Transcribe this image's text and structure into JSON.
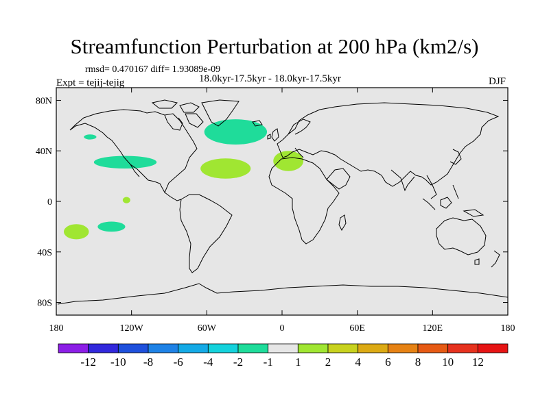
{
  "title": "Streamfunction Perturbation at 200 hPa (km2/s)",
  "stats": "rmsd= 0.470167  diff= 1.93089e-09",
  "period": "18.0kyr-17.5kyr - 18.0kyr-17.5kyr",
  "experiment": "Expt = tejij-tejig",
  "season": "DJF",
  "chart_data": {
    "type": "map",
    "projection": "cylindrical-equidistant",
    "lon_range": [
      -180,
      180
    ],
    "lat_range": [
      -90,
      90
    ],
    "x_ticks": [
      {
        "value": -180,
        "label": "180"
      },
      {
        "value": -120,
        "label": "120W"
      },
      {
        "value": -60,
        "label": "60W"
      },
      {
        "value": 0,
        "label": "0"
      },
      {
        "value": 60,
        "label": "60E"
      },
      {
        "value": 120,
        "label": "120E"
      },
      {
        "value": 180,
        "label": "180"
      }
    ],
    "y_ticks": [
      {
        "value": 80,
        "label": "80N"
      },
      {
        "value": 40,
        "label": "40N"
      },
      {
        "value": 0,
        "label": "0"
      },
      {
        "value": -40,
        "label": "40S"
      },
      {
        "value": -80,
        "label": "80S"
      }
    ],
    "background_color": "#e6e6e6",
    "anomalies": [
      {
        "lon": -125,
        "lat": 31,
        "rx_deg": 25,
        "ry_deg": 5,
        "level": "-2 to -1",
        "color": "#1fdc9a"
      },
      {
        "lon": -153,
        "lat": 51,
        "rx_deg": 5,
        "ry_deg": 2,
        "level": "-2 to -1",
        "color": "#1fdc9a"
      },
      {
        "lon": -37,
        "lat": 55,
        "rx_deg": 25,
        "ry_deg": 10,
        "level": "-2 to -1",
        "color": "#1fdc9a"
      },
      {
        "lon": -136,
        "lat": -20,
        "rx_deg": 11,
        "ry_deg": 4,
        "level": "-2 to -1",
        "color": "#1fdc9a"
      },
      {
        "lon": -45,
        "lat": 26,
        "rx_deg": 20,
        "ry_deg": 8,
        "level": "1 to 2",
        "color": "#a0e632"
      },
      {
        "lon": 5,
        "lat": 32,
        "rx_deg": 12,
        "ry_deg": 8,
        "level": "1 to 2",
        "color": "#a0e632"
      },
      {
        "lon": -164,
        "lat": -24,
        "rx_deg": 10,
        "ry_deg": 6,
        "level": "1 to 2",
        "color": "#a0e632"
      },
      {
        "lon": -124,
        "lat": 1,
        "rx_deg": 3,
        "ry_deg": 2.5,
        "level": "1 to 2",
        "color": "#a0e632"
      }
    ],
    "colorbar": {
      "boxes": [
        "#8c1ee6",
        "#3228dc",
        "#1e50dc",
        "#1e82e6",
        "#14aae6",
        "#14d2dc",
        "#1edc9a",
        "#e6e6e6",
        "#a0e632",
        "#c8d21e",
        "#dcaa14",
        "#e68214",
        "#e65a14",
        "#e6321e",
        "#e61414"
      ],
      "labels": [
        "-12",
        "-10",
        "-8",
        "-6",
        "-4",
        "-2",
        "-1",
        "1",
        "2",
        "4",
        "6",
        "8",
        "10",
        "12"
      ]
    }
  }
}
